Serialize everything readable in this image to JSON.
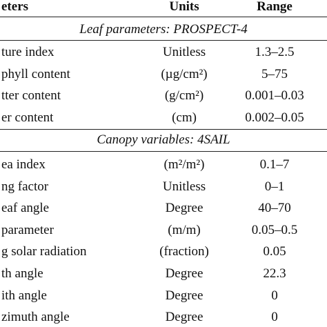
{
  "table": {
    "header": [
      "eters",
      "Units",
      "Range"
    ],
    "sections": [
      {
        "title": "Leaf parameters: PROSPECT-4",
        "rows": [
          [
            "ture index",
            "Unitless",
            "1.3–2.5"
          ],
          [
            "phyll content",
            "(µg/cm²)",
            "5–75"
          ],
          [
            "tter content",
            "(g/cm²)",
            "0.001–0.03"
          ],
          [
            "er content",
            "(cm)",
            "0.002–0.05"
          ]
        ]
      },
      {
        "title": "Canopy variables: 4SAIL",
        "rows": [
          [
            "ea index",
            "(m²/m²)",
            "0.1–7"
          ],
          [
            "ng factor",
            "Unitless",
            "0–1"
          ],
          [
            "eaf angle",
            "Degree",
            "40–70"
          ],
          [
            "parameter",
            "(m/m)",
            "0.05–0.5"
          ],
          [
            "g solar radiation",
            "(fraction)",
            "0.05"
          ],
          [
            "th angle",
            "Degree",
            "22.3"
          ],
          [
            "ith angle",
            "Degree",
            "0"
          ],
          [
            "zimuth angle",
            "Degree",
            "0"
          ]
        ]
      }
    ]
  }
}
